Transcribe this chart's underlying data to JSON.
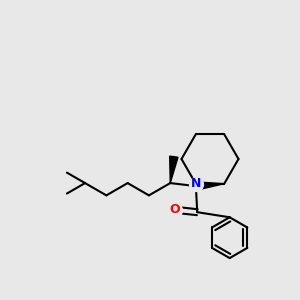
{
  "bg_color": "#e8e8e8",
  "bond_color": "#000000",
  "N_color": "#0000ff",
  "O_color": "#ff0000",
  "line_width": 1.5,
  "fig_width": 3.0,
  "fig_height": 3.0,
  "xlim": [
    0.0,
    1.0
  ],
  "ylim": [
    0.1,
    1.0
  ]
}
